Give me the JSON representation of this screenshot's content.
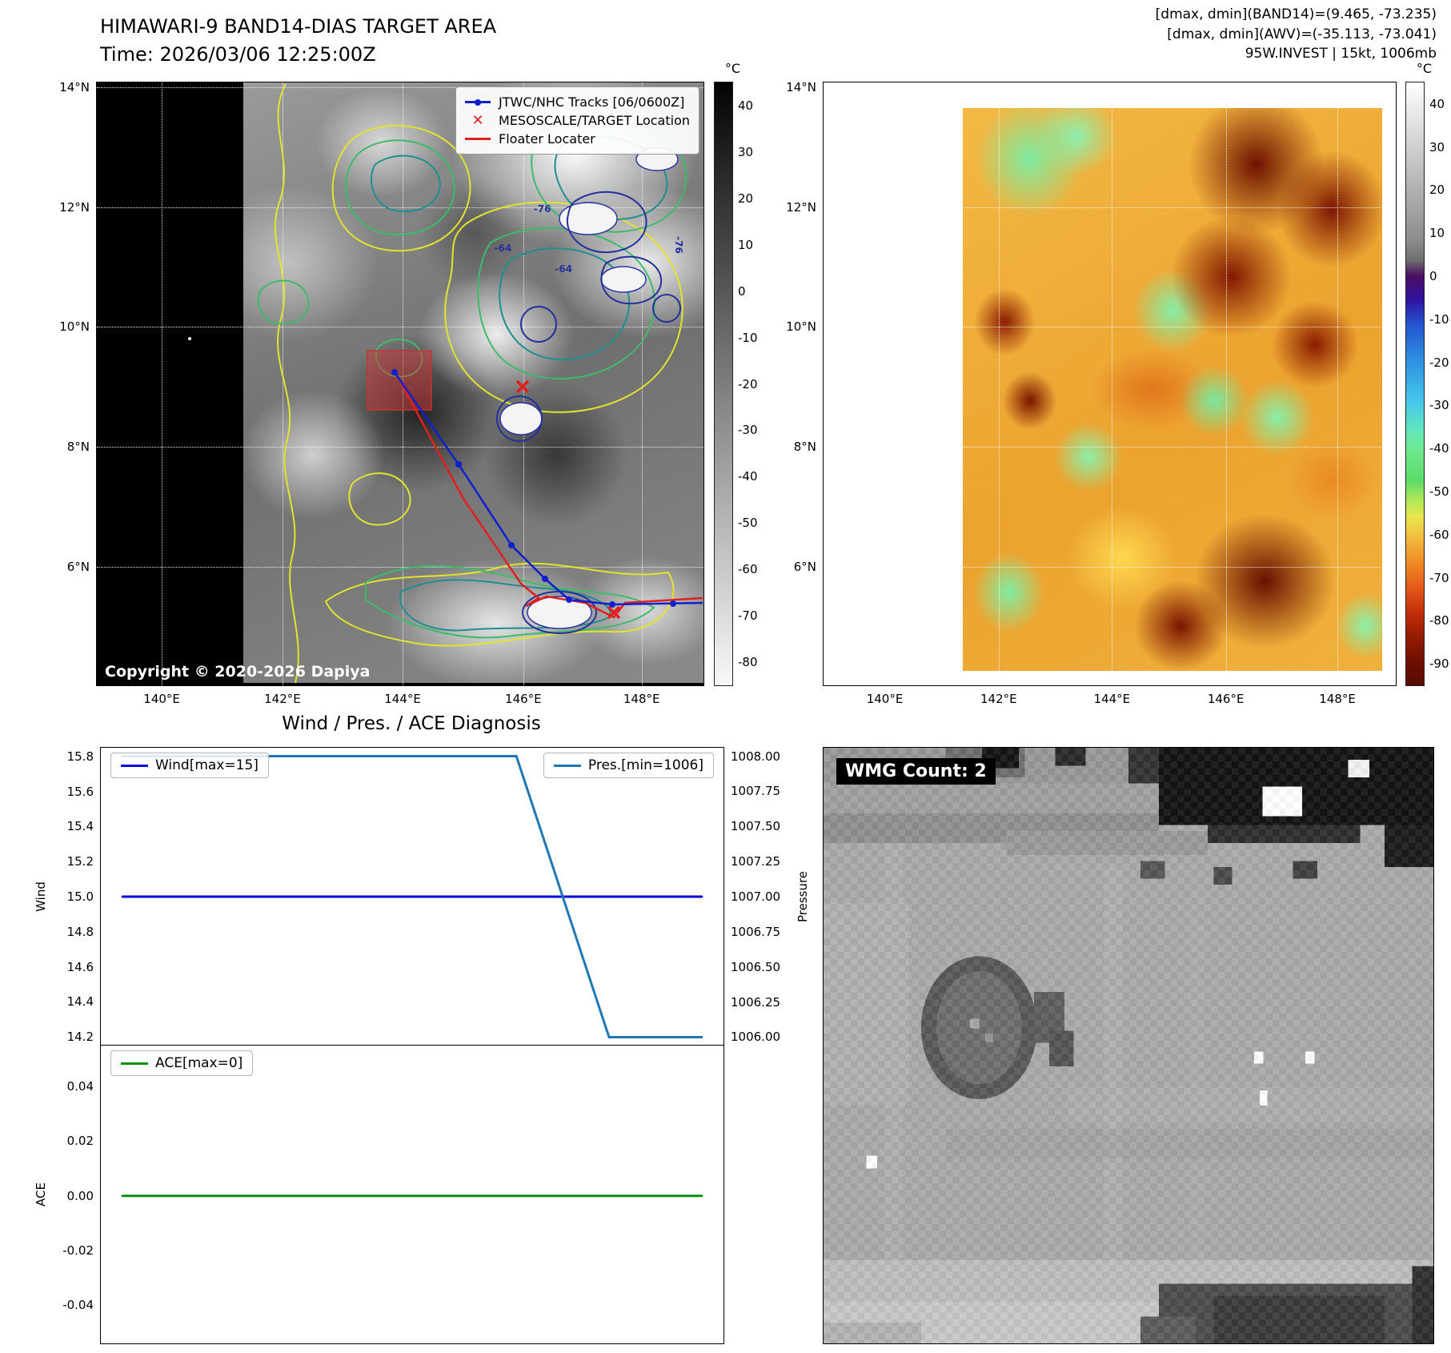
{
  "panels": {
    "band14": {
      "title": "HIMAWARI-9 BAND14-DIAS TARGET AREA",
      "time": "Time: 2026/03/06 12:25:00Z",
      "copyright": "Copyright © 2020-2026 Dapiya",
      "legend": [
        {
          "label": "JTWC/NHC Tracks [06/0600Z]",
          "color": "#1020cc",
          "marker": "line-dot",
          "glyph": ""
        },
        {
          "label": "MESOSCALE/TARGET Location",
          "color": "#e02020",
          "marker": "x",
          "glyph": "✕"
        },
        {
          "label": "Floater Locater",
          "color": "#e02020",
          "marker": "line",
          "glyph": ""
        }
      ],
      "contour_labels": [
        "-76",
        "-64",
        "-64",
        "-76"
      ],
      "colorbar": {
        "unit": "°C",
        "ticks": [
          40,
          30,
          20,
          10,
          0,
          -10,
          -20,
          -30,
          -40,
          -50,
          -60,
          -70,
          -80
        ]
      }
    },
    "awv": {
      "annotations": [
        "[dmax, dmin](BAND14)=(9.465, -73.235)",
        "[dmax, dmin](AWV)=(-35.113, -73.041)",
        "95W.INVEST | 15kt, 1006mb"
      ],
      "colorbar": {
        "unit": "°C",
        "ticks": [
          40,
          30,
          20,
          10,
          0,
          -10,
          -20,
          -30,
          -40,
          -50,
          -60,
          -70,
          -80,
          -90
        ]
      }
    },
    "axes": {
      "x_labels": [
        "140°E",
        "142°E",
        "144°E",
        "146°E",
        "148°E"
      ],
      "y_labels": [
        "14°N",
        "12°N",
        "10°N",
        "8°N",
        "6°N"
      ]
    },
    "wmg": {
      "label": "WMG Count: 2"
    }
  },
  "chart_data": [
    {
      "type": "line",
      "title": "Wind / Pres. / ACE Diagnosis",
      "axes": {
        "left": {
          "label": "Wind",
          "ticks": [
            "15.8",
            "15.6",
            "15.4",
            "15.2",
            "15.0",
            "14.8",
            "14.6",
            "14.4",
            "14.2"
          ],
          "lim": [
            14.15,
            15.85
          ]
        },
        "right": {
          "label": "Pressure",
          "ticks": [
            "1008.00",
            "1007.75",
            "1007.50",
            "1007.25",
            "1007.00",
            "1006.75",
            "1006.50",
            "1006.25",
            "1006.00"
          ],
          "lim": [
            1005.94,
            1008.06
          ]
        }
      },
      "series": [
        {
          "name": "Wind[max=15]",
          "color": "#0000e0",
          "axis": "left",
          "x": [
            0,
            1
          ],
          "y": [
            15,
            15
          ]
        },
        {
          "name": "Pres.[min=1006]",
          "color": "#1f77b4",
          "axis": "right",
          "x": [
            0,
            0.68,
            0.84,
            1
          ],
          "y": [
            1008,
            1008,
            1006,
            1006
          ]
        }
      ],
      "legend_position": "top-left-and-top-right",
      "grid": false
    },
    {
      "type": "line",
      "title": "",
      "axes": {
        "left": {
          "label": "ACE",
          "ticks": [
            "0.04",
            "0.02",
            "0.00",
            "-0.02",
            "-0.04"
          ],
          "lim": [
            -0.054,
            0.055
          ]
        }
      },
      "series": [
        {
          "name": "ACE[max=0]",
          "color": "#0f8f0f",
          "axis": "left",
          "x": [
            0,
            1
          ],
          "y": [
            0,
            0
          ]
        }
      ],
      "legend_position": "top-left",
      "grid": false
    }
  ]
}
